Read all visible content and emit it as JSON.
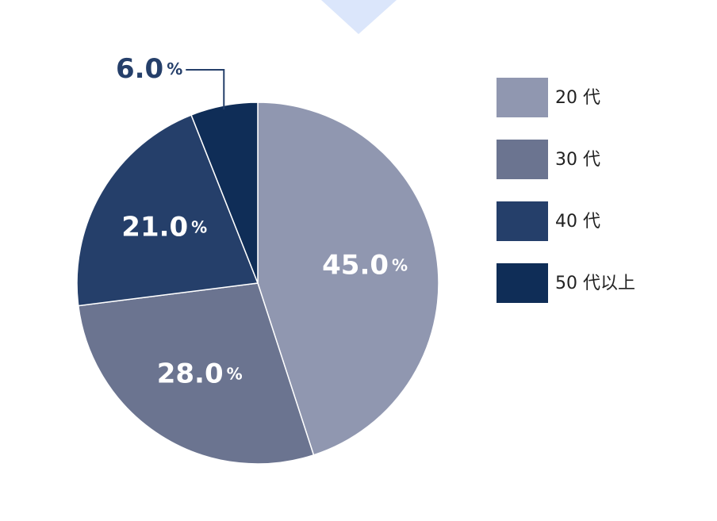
{
  "chart_data": {
    "type": "pie",
    "categories": [
      "20 代",
      "30 代",
      "40 代",
      "50 代以上"
    ],
    "values": [
      45,
      28,
      21,
      6
    ],
    "value_labels": [
      "45.0%",
      "28.0%",
      "21.0%",
      "6.0%"
    ],
    "colors": [
      "#9097b0",
      "#6b7490",
      "#253f6a",
      "#0f2d57"
    ],
    "legend": "right"
  }
}
